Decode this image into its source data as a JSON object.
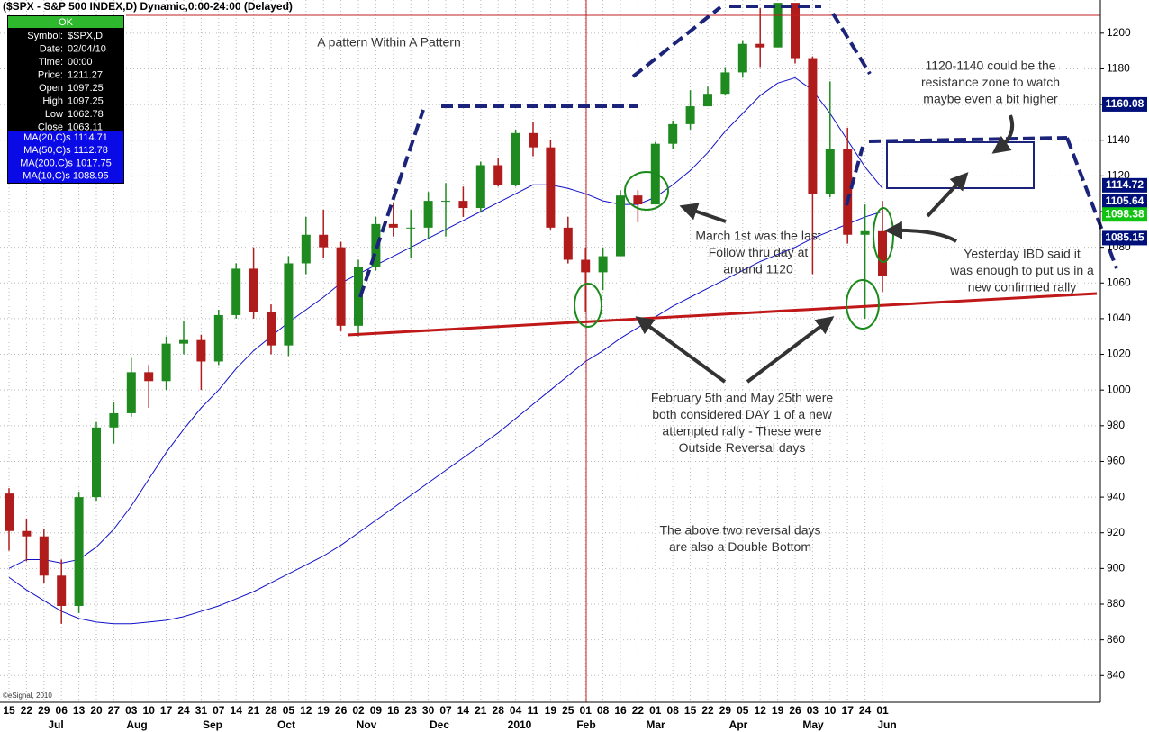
{
  "chart_data": {
    "type": "candlestick",
    "title": "($SPX - S&P 500 INDEX,D) Dynamic,0:00-24:00 (Delayed)",
    "copyright": "©eSignal, 2010",
    "categories": [
      "15",
      "22",
      "29",
      "06",
      "13",
      "20",
      "27",
      "03",
      "10",
      "17",
      "24",
      "31",
      "07",
      "14",
      "21",
      "28",
      "05",
      "12",
      "19",
      "26",
      "02",
      "09",
      "16",
      "23",
      "30",
      "07",
      "14",
      "21",
      "28",
      "04",
      "11",
      "19",
      "25",
      "01",
      "08",
      "16",
      "22",
      "01",
      "08",
      "15",
      "22",
      "29",
      "05",
      "12",
      "19",
      "26",
      "03",
      "10",
      "17",
      "24",
      "01"
    ],
    "months": [
      "Jul",
      "Aug",
      "Sep",
      "Oct",
      "Nov",
      "Dec",
      "2010",
      "Feb",
      "Mar",
      "Apr",
      "May",
      "Jun"
    ],
    "open": [
      942,
      921,
      918,
      896,
      879,
      940,
      979,
      987,
      1010,
      1005,
      1026,
      1028,
      1016,
      1042,
      1068,
      1044,
      1025,
      1071,
      1087,
      1080,
      1036,
      1069,
      1093,
      1091,
      1091,
      1106,
      1106,
      1102,
      1126,
      1115,
      1144,
      1136,
      1091,
      1073,
      1066,
      1075,
      1109,
      1104,
      1138,
      1149,
      1159,
      1166,
      1178,
      1194,
      1192,
      1217,
      1186,
      1110,
      1135,
      1087,
      1089
    ],
    "high": [
      945,
      928,
      922,
      905,
      943,
      982,
      993,
      1018,
      1014,
      1030,
      1039,
      1031,
      1045,
      1071,
      1080,
      1048,
      1075,
      1097,
      1101,
      1083,
      1073,
      1097,
      1105,
      1101,
      1111,
      1116,
      1114,
      1128,
      1130,
      1146,
      1150,
      1140,
      1097,
      1080,
      1080,
      1112,
      1112,
      1139,
      1151,
      1168,
      1170,
      1181,
      1196,
      1214,
      1216,
      1215,
      1187,
      1173,
      1147,
      1104,
      1106
    ],
    "low": [
      910,
      904,
      892,
      869,
      875,
      938,
      970,
      985,
      990,
      1000,
      1020,
      1000,
      1014,
      1040,
      1040,
      1020,
      1019,
      1065,
      1074,
      1033,
      1030,
      1067,
      1086,
      1074,
      1085,
      1086,
      1097,
      1100,
      1114,
      1114,
      1131,
      1090,
      1071,
      1044,
      1056,
      1075,
      1094,
      1105,
      1135,
      1146,
      1159,
      1165,
      1175,
      1181,
      1193,
      1183,
      1065,
      1108,
      1082,
      1040,
      1055
    ],
    "close": [
      921,
      918,
      896,
      879,
      940,
      979,
      987,
      1010,
      1005,
      1026,
      1028,
      1016,
      1042,
      1068,
      1044,
      1025,
      1071,
      1087,
      1080,
      1036,
      1069,
      1093,
      1091,
      1091,
      1106,
      1106,
      1102,
      1126,
      1115,
      1144,
      1136,
      1091,
      1073,
      1066,
      1075,
      1109,
      1104,
      1138,
      1149,
      1159,
      1166,
      1178,
      1194,
      1192,
      1217,
      1186,
      1110,
      1135,
      1087,
      1089,
      1064
    ],
    "up_color": "#1f8a1f",
    "down_color": "#b01c1c",
    "series": [
      {
        "color": "#1010c8",
        "values": [
          900,
          905,
          905,
          903,
          905,
          912,
          922,
          935,
          950,
          965,
          978,
          990,
          1000,
          1012,
          1022,
          1030,
          1038,
          1045,
          1052,
          1060,
          1065,
          1070,
          1075,
          1080,
          1085,
          1090,
          1095,
          1100,
          1105,
          1110,
          1115,
          1115,
          1113,
          1110,
          1106,
          1104,
          1104,
          1108,
          1115,
          1123,
          1133,
          1145,
          1155,
          1165,
          1172,
          1175,
          1168,
          1155,
          1140,
          1125,
          1113
        ]
      },
      {
        "color": "#1010c8",
        "values": [
          895,
          888,
          882,
          876,
          872,
          870,
          869,
          869,
          870,
          871,
          873,
          876,
          879,
          883,
          887,
          892,
          897,
          902,
          907,
          913,
          920,
          927,
          934,
          941,
          948,
          955,
          962,
          969,
          976,
          984,
          992,
          1000,
          1008,
          1016,
          1022,
          1029,
          1035,
          1041,
          1047,
          1052,
          1057,
          1062,
          1067,
          1072,
          1076,
          1080,
          1085,
          1089,
          1093,
          1097,
          1100
        ]
      }
    ],
    "ylim": [
      825,
      1210
    ],
    "yticks": [
      840,
      860,
      880,
      900,
      920,
      940,
      960,
      980,
      1000,
      1020,
      1040,
      1060,
      1080,
      1100,
      1120,
      1140,
      1160,
      1180,
      1200
    ],
    "grid": true,
    "price_tags": [
      {
        "value": 1160.08,
        "color": "#00107a"
      },
      {
        "value": 1114.72,
        "color": "#00107a"
      },
      {
        "value": 1105.64,
        "color": "#00107a"
      },
      {
        "value": 1098.38,
        "color": "#12c412"
      },
      {
        "value": 1085.15,
        "color": "#00107a"
      }
    ],
    "data_window": {
      "header": "OK",
      "rows": [
        [
          "Symbol:",
          "$SPX,D"
        ],
        [
          "Date:",
          "02/04/10"
        ],
        [
          "Time:",
          "00:00"
        ],
        [
          "Price:",
          "1211.27"
        ],
        [
          "Open",
          "1097.25"
        ],
        [
          "High",
          "1097.25"
        ],
        [
          "Low",
          "1062.78"
        ],
        [
          "Close",
          "1063.11"
        ]
      ],
      "ma_rows": [
        "MA(20,C)s 1114.71",
        "MA(50,C)s 1112.78",
        "MA(200,C)s 1017.75",
        "MA(10,C)s 1088.95"
      ]
    },
    "annotations": [
      [
        "A pattern Within A Pattern"
      ],
      [
        "1120-1140 could be the",
        "resistance zone to watch",
        "maybe even a bit higher"
      ],
      [
        "March 1st was the last",
        "Follow thru day at",
        "around 1120"
      ],
      [
        "Yesterday IBD said it",
        "was enough to put us in a",
        "new confirmed rally"
      ],
      [
        "February 5th and May 25th were",
        "both considered DAY 1 of a new",
        "attempted rally - These were",
        "Outside Reversal days"
      ],
      [
        "The above two reversal days",
        "are also a Double Bottom"
      ]
    ]
  }
}
